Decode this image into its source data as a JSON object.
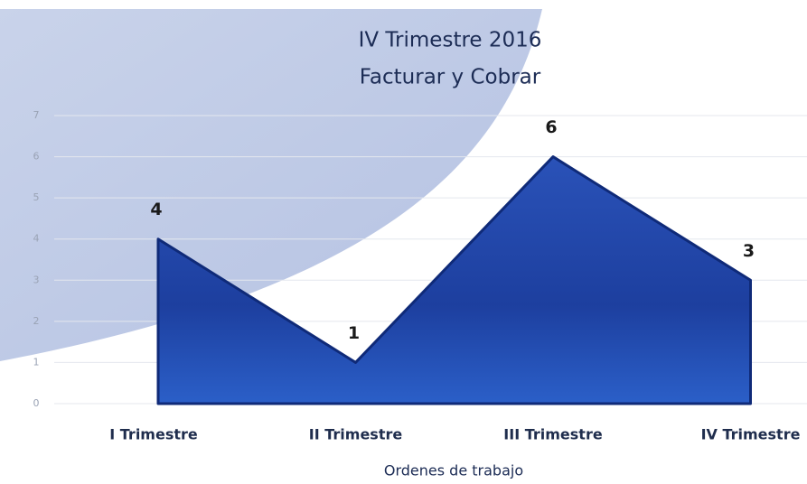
{
  "chart_data": {
    "type": "area",
    "title": "IV Trimestre 2016",
    "subtitle": "Facturar y Cobrar",
    "x_label": "Ordenes de trabajo",
    "categories": [
      "I Trimestre",
      "II Trimestre",
      "III Trimestre",
      "IV Trimestre"
    ],
    "values": [
      4,
      1,
      6,
      3
    ],
    "color": "#1d3f9f",
    "ylim": [
      0,
      7
    ],
    "yticks": [
      0,
      1,
      2,
      3,
      4,
      5,
      6,
      7
    ],
    "grid": true
  }
}
